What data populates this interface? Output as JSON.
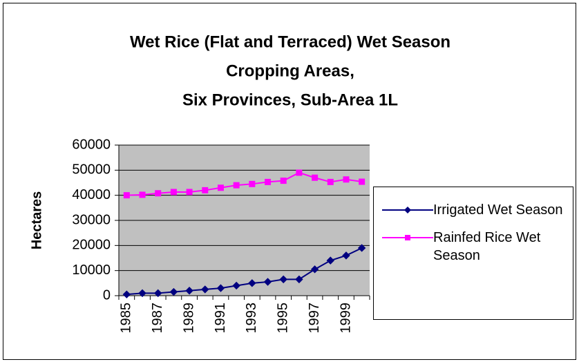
{
  "chart_data": {
    "type": "line",
    "title": "Wet Rice (Flat and Terraced) Wet Season Cropping Areas, Six Provinces, Sub-Area 1L",
    "title_lines": [
      "Wet Rice (Flat and Terraced) Wet Season",
      "Cropping Areas,",
      "Six Provinces, Sub-Area 1L"
    ],
    "y_label": "Hectares",
    "categories": [
      "1985",
      null,
      "1987",
      null,
      "1989",
      null,
      "1991",
      null,
      "1993",
      null,
      "1995",
      null,
      "1997",
      null,
      "1999",
      null
    ],
    "series": [
      {
        "name": "Irrigated Wet Season",
        "color": "#000080",
        "marker": "diamond",
        "values": [
          500,
          1000,
          1000,
          1500,
          2000,
          2500,
          3000,
          4000,
          5000,
          5500,
          6500,
          6500,
          10500,
          14000,
          16000,
          19000
        ]
      },
      {
        "name": "Rainfed Rice Wet Season",
        "color": "#ff00ff",
        "marker": "square",
        "values": [
          40000,
          40200,
          40800,
          41300,
          41300,
          42000,
          43000,
          44000,
          44500,
          45300,
          45800,
          49000,
          47000,
          45300,
          46300,
          45400
        ]
      }
    ],
    "ylim": [
      0,
      60000
    ],
    "yticks": [
      0,
      10000,
      20000,
      30000,
      40000,
      50000,
      60000
    ],
    "grid": true,
    "plot_background": "#c0c0c0",
    "legend": "right"
  }
}
